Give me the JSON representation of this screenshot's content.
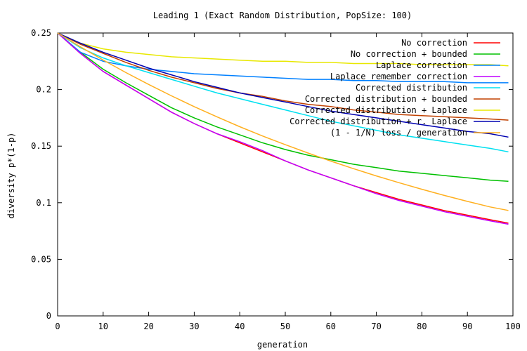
{
  "chart_data": {
    "type": "line",
    "title": "Leading 1 (Exact Random Distribution, PopSize: 100)",
    "xlabel": "generation",
    "ylabel": "diversity p*(1-p)",
    "xlim": [
      0,
      100
    ],
    "ylim": [
      0,
      0.25
    ],
    "x_ticks": [
      0,
      10,
      20,
      30,
      40,
      50,
      60,
      70,
      80,
      90,
      100
    ],
    "x_tick_labels": [
      "0",
      "10",
      "20",
      "30",
      "40",
      "50",
      "60",
      "70",
      "80",
      "90",
      "100"
    ],
    "y_ticks": [
      0,
      0.05,
      0.1,
      0.15,
      0.2,
      0.25
    ],
    "y_tick_labels": [
      "0",
      "0.05",
      "0.1",
      "0.15",
      "0.2",
      "0.25"
    ],
    "grid": false,
    "legend_position": "top-right",
    "x": [
      0,
      5,
      10,
      15,
      20,
      25,
      30,
      35,
      40,
      45,
      50,
      55,
      60,
      65,
      70,
      75,
      80,
      85,
      90,
      95,
      99
    ],
    "series": [
      {
        "name": "No correction",
        "color": "#ff0000",
        "values": [
          0.25,
          0.232,
          0.216,
          0.204,
          0.192,
          0.18,
          0.17,
          0.161,
          0.153,
          0.145,
          0.137,
          0.129,
          0.122,
          0.115,
          0.109,
          0.103,
          0.098,
          0.093,
          0.089,
          0.085,
          0.082
        ]
      },
      {
        "name": "No correction + bounded",
        "color": "#00c000",
        "values": [
          0.25,
          0.233,
          0.218,
          0.206,
          0.195,
          0.184,
          0.175,
          0.167,
          0.16,
          0.153,
          0.147,
          0.142,
          0.138,
          0.134,
          0.131,
          0.128,
          0.126,
          0.124,
          0.122,
          0.12,
          0.119
        ]
      },
      {
        "name": "Laplace correction",
        "color": "#0080ff",
        "values": [
          0.25,
          0.233,
          0.225,
          0.221,
          0.218,
          0.216,
          0.214,
          0.213,
          0.212,
          0.211,
          0.21,
          0.209,
          0.209,
          0.208,
          0.208,
          0.207,
          0.207,
          0.207,
          0.206,
          0.206,
          0.206
        ]
      },
      {
        "name": "Laplace remember correction",
        "color": "#c000ff",
        "values": [
          0.25,
          0.232,
          0.216,
          0.204,
          0.192,
          0.18,
          0.17,
          0.161,
          0.154,
          0.146,
          0.137,
          0.129,
          0.122,
          0.115,
          0.108,
          0.102,
          0.097,
          0.092,
          0.088,
          0.084,
          0.081
        ]
      },
      {
        "name": "Corrected distribution",
        "color": "#00e0f0",
        "values": [
          0.25,
          0.237,
          0.228,
          0.221,
          0.215,
          0.209,
          0.203,
          0.197,
          0.192,
          0.187,
          0.182,
          0.177,
          0.172,
          0.168,
          0.164,
          0.16,
          0.157,
          0.154,
          0.151,
          0.148,
          0.145
        ]
      },
      {
        "name": "Corrected distribution + bounded",
        "color": "#c04000",
        "values": [
          0.25,
          0.24,
          0.232,
          0.224,
          0.217,
          0.211,
          0.206,
          0.201,
          0.197,
          0.194,
          0.19,
          0.187,
          0.185,
          0.182,
          0.18,
          0.178,
          0.177,
          0.176,
          0.175,
          0.174,
          0.173
        ]
      },
      {
        "name": "Corrected distribution + Laplace",
        "color": "#e8e800",
        "values": [
          0.25,
          0.241,
          0.236,
          0.233,
          0.231,
          0.229,
          0.228,
          0.227,
          0.226,
          0.225,
          0.225,
          0.224,
          0.224,
          0.223,
          0.223,
          0.223,
          0.222,
          0.222,
          0.222,
          0.222,
          0.221
        ]
      },
      {
        "name": "Corrected distribution + r. Laplace",
        "color": "#0000b0",
        "values": [
          0.25,
          0.241,
          0.233,
          0.226,
          0.219,
          0.213,
          0.207,
          0.202,
          0.197,
          0.193,
          0.189,
          0.185,
          0.181,
          0.178,
          0.175,
          0.172,
          0.169,
          0.166,
          0.163,
          0.161,
          0.158
        ]
      },
      {
        "name": "(1 - 1/N) loss / generation",
        "color": "#ffb020",
        "values": [
          0.25,
          0.2378,
          0.2261,
          0.215,
          0.2045,
          0.1945,
          0.1849,
          0.1759,
          0.1672,
          0.159,
          0.1513,
          0.1439,
          0.1368,
          0.1301,
          0.1237,
          0.1177,
          0.1119,
          0.1064,
          0.1012,
          0.0963,
          0.0932
        ]
      }
    ]
  }
}
